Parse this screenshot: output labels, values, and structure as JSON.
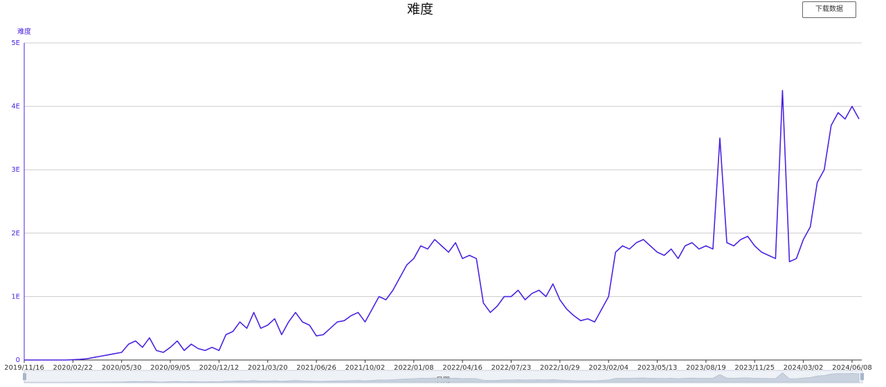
{
  "chart_data": {
    "type": "line",
    "title": "难度",
    "y_label": "难度",
    "x_label": "日期",
    "download_button": "下载数据",
    "color": "#4a22e0",
    "categories": [
      "2019/11/16",
      null,
      null,
      null,
      null,
      null,
      null,
      "2020/02/22",
      null,
      null,
      null,
      null,
      null,
      null,
      "2020/05/30",
      null,
      null,
      null,
      null,
      null,
      null,
      "2020/09/05",
      null,
      null,
      null,
      null,
      null,
      null,
      "2020/12/12",
      null,
      null,
      null,
      null,
      null,
      null,
      "2021/03/20",
      null,
      null,
      null,
      null,
      null,
      null,
      "2021/06/26",
      null,
      null,
      null,
      null,
      null,
      null,
      "2021/10/02",
      null,
      null,
      null,
      null,
      null,
      null,
      "2022/01/08",
      null,
      null,
      null,
      null,
      null,
      null,
      "2022/04/16",
      null,
      null,
      null,
      null,
      null,
      null,
      "2022/07/23",
      null,
      null,
      null,
      null,
      null,
      null,
      "2022/10/29",
      null,
      null,
      null,
      null,
      null,
      null,
      "2023/02/04",
      null,
      null,
      null,
      null,
      null,
      null,
      "2023/05/13",
      null,
      null,
      null,
      null,
      null,
      null,
      "2023/08/19",
      null,
      null,
      null,
      null,
      null,
      null,
      "2023/11/25",
      null,
      null,
      null,
      null,
      null,
      null,
      "2024/03/02",
      null,
      null,
      null,
      null,
      null,
      null,
      "2024/06/08",
      null
    ],
    "values": [
      0,
      0,
      0,
      0,
      0,
      0,
      0,
      0.005,
      0.01,
      0.02,
      0.04,
      0.06,
      0.08,
      0.1,
      0.12,
      0.25,
      0.3,
      0.2,
      0.35,
      0.15,
      0.12,
      0.2,
      0.3,
      0.15,
      0.25,
      0.18,
      0.15,
      0.2,
      0.15,
      0.4,
      0.45,
      0.6,
      0.5,
      0.75,
      0.5,
      0.55,
      0.65,
      0.4,
      0.6,
      0.75,
      0.6,
      0.55,
      0.38,
      0.4,
      0.5,
      0.6,
      0.62,
      0.7,
      0.75,
      0.6,
      0.8,
      1.0,
      0.95,
      1.1,
      1.3,
      1.5,
      1.6,
      1.8,
      1.75,
      1.9,
      1.8,
      1.7,
      1.85,
      1.6,
      1.65,
      1.6,
      0.9,
      0.75,
      0.85,
      1.0,
      1.0,
      1.1,
      0.95,
      1.05,
      1.1,
      1.0,
      1.2,
      0.95,
      0.8,
      0.7,
      0.62,
      0.65,
      0.6,
      0.8,
      1.0,
      1.7,
      1.8,
      1.75,
      1.85,
      1.9,
      1.8,
      1.7,
      1.65,
      1.75,
      1.6,
      1.8,
      1.85,
      1.75,
      1.8,
      1.75,
      3.5,
      1.85,
      1.8,
      1.9,
      1.95,
      1.8,
      1.7,
      1.65,
      1.6,
      4.25,
      1.55,
      1.6,
      1.9,
      2.1,
      2.8,
      3.0,
      3.7,
      3.9,
      3.8,
      4.0,
      3.8
    ],
    "ylim": [
      0,
      5
    ],
    "yticks": [
      0,
      {
        "value": 1,
        "label": "1E"
      },
      {
        "value": 2,
        "label": "2E"
      },
      {
        "value": 3,
        "label": "3E"
      },
      {
        "value": 4,
        "label": "4E"
      },
      {
        "value": 5,
        "label": "5E"
      }
    ],
    "grid": true
  }
}
